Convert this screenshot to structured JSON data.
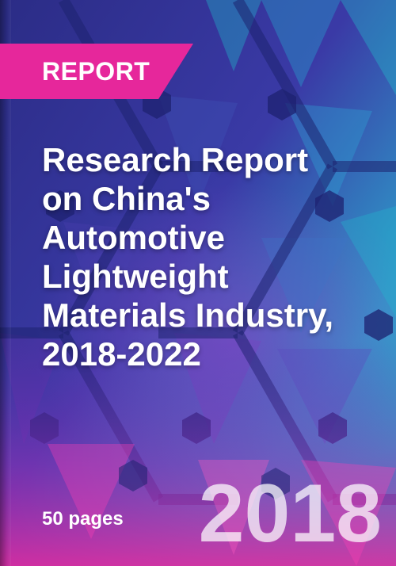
{
  "badge": {
    "label": "REPORT"
  },
  "title_lines": [
    "Research Report",
    "on China's",
    "Automotive",
    "Lightweight",
    "Materials Industry,",
    "2018-2022"
  ],
  "footer": {
    "pages": "50 pages",
    "year": "2018"
  },
  "colors": {
    "accent": "#e6279b",
    "background": "#2a2f7a",
    "teal": "#1bb8c8",
    "purple": "#6a3fb0"
  }
}
